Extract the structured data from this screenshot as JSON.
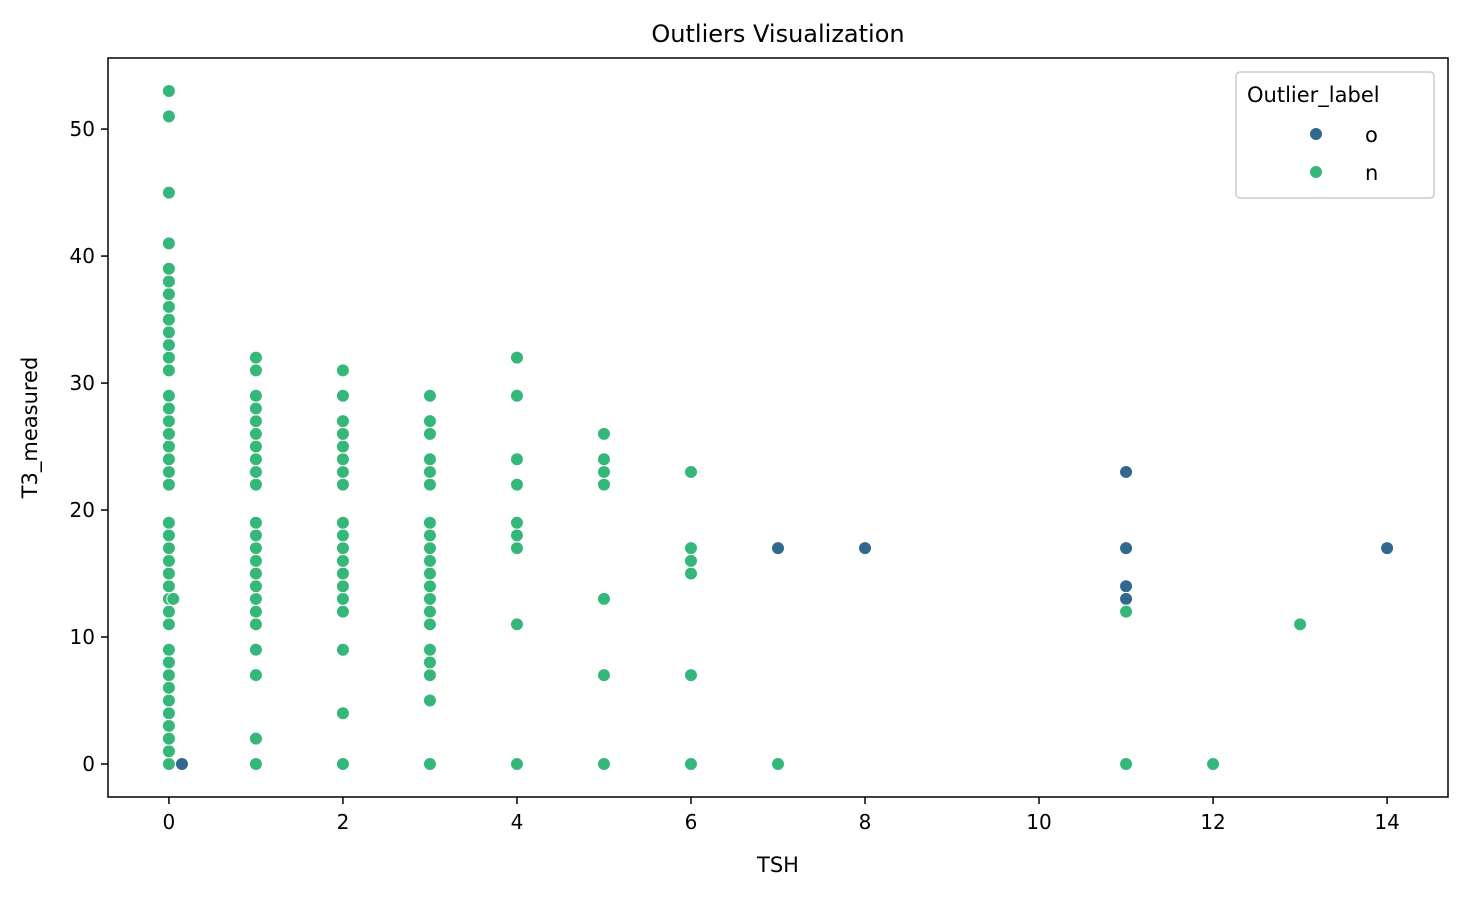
{
  "chart_data": {
    "type": "scatter",
    "title": "Outliers Visualization",
    "xlabel": "TSH",
    "ylabel": "T3_measured",
    "xlim": [
      -0.7,
      14.7
    ],
    "ylim": [
      -2.6,
      55.6
    ],
    "xticks": [
      0,
      2,
      4,
      6,
      8,
      10,
      12,
      14
    ],
    "yticks": [
      0,
      10,
      20,
      30,
      40,
      50
    ],
    "grid": false,
    "legend": {
      "title": "Outlier_label",
      "position": "top-right"
    },
    "series": [
      {
        "name": "o",
        "color": "#31688e",
        "points": [
          [
            0.15,
            0
          ],
          [
            7,
            17
          ],
          [
            8,
            17
          ],
          [
            11,
            23
          ],
          [
            11,
            17
          ],
          [
            11,
            14
          ],
          [
            11,
            13
          ],
          [
            14,
            17
          ]
        ]
      },
      {
        "name": "n",
        "color": "#35b779",
        "points": [
          [
            0,
            0
          ],
          [
            0,
            1
          ],
          [
            0,
            2
          ],
          [
            0,
            3
          ],
          [
            0,
            4
          ],
          [
            0,
            5
          ],
          [
            0,
            6
          ],
          [
            0,
            7
          ],
          [
            0,
            8
          ],
          [
            0,
            9
          ],
          [
            0,
            11
          ],
          [
            0,
            12
          ],
          [
            0,
            13
          ],
          [
            0,
            14
          ],
          [
            0,
            15
          ],
          [
            0,
            16
          ],
          [
            0,
            17
          ],
          [
            0,
            18
          ],
          [
            0,
            19
          ],
          [
            0,
            22
          ],
          [
            0,
            23
          ],
          [
            0,
            24
          ],
          [
            0,
            25
          ],
          [
            0,
            26
          ],
          [
            0,
            27
          ],
          [
            0,
            28
          ],
          [
            0,
            29
          ],
          [
            0,
            31
          ],
          [
            0,
            32
          ],
          [
            0,
            33
          ],
          [
            0,
            34
          ],
          [
            0,
            35
          ],
          [
            0,
            36
          ],
          [
            0,
            37
          ],
          [
            0,
            38
          ],
          [
            0,
            39
          ],
          [
            0,
            41
          ],
          [
            0,
            45
          ],
          [
            0,
            51
          ],
          [
            0,
            53
          ],
          [
            0.05,
            13
          ],
          [
            1,
            0
          ],
          [
            1,
            2
          ],
          [
            1,
            7
          ],
          [
            1,
            9
          ],
          [
            1,
            11
          ],
          [
            1,
            12
          ],
          [
            1,
            13
          ],
          [
            1,
            14
          ],
          [
            1,
            15
          ],
          [
            1,
            16
          ],
          [
            1,
            17
          ],
          [
            1,
            18
          ],
          [
            1,
            19
          ],
          [
            1,
            22
          ],
          [
            1,
            23
          ],
          [
            1,
            24
          ],
          [
            1,
            25
          ],
          [
            1,
            26
          ],
          [
            1,
            27
          ],
          [
            1,
            28
          ],
          [
            1,
            29
          ],
          [
            1,
            31
          ],
          [
            1,
            32
          ],
          [
            2,
            0
          ],
          [
            2,
            4
          ],
          [
            2,
            9
          ],
          [
            2,
            12
          ],
          [
            2,
            13
          ],
          [
            2,
            14
          ],
          [
            2,
            15
          ],
          [
            2,
            16
          ],
          [
            2,
            17
          ],
          [
            2,
            18
          ],
          [
            2,
            19
          ],
          [
            2,
            22
          ],
          [
            2,
            23
          ],
          [
            2,
            24
          ],
          [
            2,
            25
          ],
          [
            2,
            26
          ],
          [
            2,
            27
          ],
          [
            2,
            29
          ],
          [
            2,
            31
          ],
          [
            3,
            0
          ],
          [
            3,
            5
          ],
          [
            3,
            7
          ],
          [
            3,
            8
          ],
          [
            3,
            9
          ],
          [
            3,
            11
          ],
          [
            3,
            12
          ],
          [
            3,
            13
          ],
          [
            3,
            14
          ],
          [
            3,
            15
          ],
          [
            3,
            16
          ],
          [
            3,
            17
          ],
          [
            3,
            18
          ],
          [
            3,
            19
          ],
          [
            3,
            22
          ],
          [
            3,
            23
          ],
          [
            3,
            24
          ],
          [
            3,
            26
          ],
          [
            3,
            27
          ],
          [
            3,
            29
          ],
          [
            4,
            0
          ],
          [
            4,
            11
          ],
          [
            4,
            17
          ],
          [
            4,
            18
          ],
          [
            4,
            19
          ],
          [
            4,
            22
          ],
          [
            4,
            24
          ],
          [
            4,
            29
          ],
          [
            4,
            32
          ],
          [
            5,
            0
          ],
          [
            5,
            7
          ],
          [
            5,
            13
          ],
          [
            5,
            22
          ],
          [
            5,
            23
          ],
          [
            5,
            24
          ],
          [
            5,
            26
          ],
          [
            6,
            0
          ],
          [
            6,
            7
          ],
          [
            6,
            15
          ],
          [
            6,
            16
          ],
          [
            6,
            17
          ],
          [
            6,
            23
          ],
          [
            7,
            0
          ],
          [
            11,
            0
          ],
          [
            11,
            12
          ],
          [
            12,
            0
          ],
          [
            13,
            11
          ]
        ]
      }
    ]
  }
}
